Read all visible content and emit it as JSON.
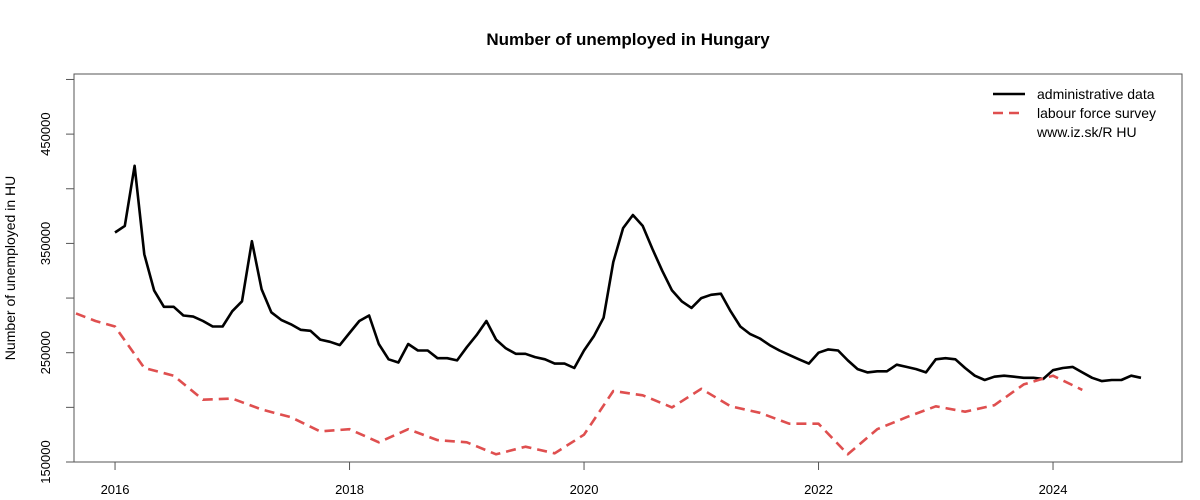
{
  "chart_data": {
    "type": "line",
    "title": "Number of unemployed in Hungary",
    "xlabel": "",
    "ylabel": "Number of unemployed in HU",
    "xlim": [
      2015.65,
      2025.1
    ],
    "ylim": [
      150000,
      505000
    ],
    "x_ticks": [
      2016,
      2018,
      2020,
      2022,
      2024
    ],
    "y_ticks": [
      150000,
      200000,
      250000,
      300000,
      350000,
      400000,
      450000,
      500000
    ],
    "y_tick_labels": [
      {
        "value": 150000,
        "label": "150000"
      },
      {
        "value": 250000,
        "label": "250000"
      },
      {
        "value": 350000,
        "label": "350000"
      },
      {
        "value": 450000,
        "label": "450000"
      }
    ],
    "grid": false,
    "legend_position": "top-right",
    "legend_note": "www.iz.sk/R HU",
    "colors": {
      "administrative": "#000000",
      "lfs": "#df4f4f"
    },
    "series": [
      {
        "name": "administrative data",
        "style": "solid",
        "color": "#000000",
        "x": [
          2016.0,
          2016.083,
          2016.167,
          2016.25,
          2016.333,
          2016.417,
          2016.5,
          2016.583,
          2016.667,
          2016.75,
          2016.833,
          2016.917,
          2017.0,
          2017.083,
          2017.167,
          2017.25,
          2017.333,
          2017.417,
          2017.5,
          2017.583,
          2017.667,
          2017.75,
          2017.833,
          2017.917,
          2018.0,
          2018.083,
          2018.167,
          2018.25,
          2018.333,
          2018.417,
          2018.5,
          2018.583,
          2018.667,
          2018.75,
          2018.833,
          2018.917,
          2019.0,
          2019.083,
          2019.167,
          2019.25,
          2019.333,
          2019.417,
          2019.5,
          2019.583,
          2019.667,
          2019.75,
          2019.833,
          2019.917,
          2020.0,
          2020.083,
          2020.167,
          2020.25,
          2020.333,
          2020.417,
          2020.5,
          2020.583,
          2020.667,
          2020.75,
          2020.833,
          2020.917,
          2021.0,
          2021.083,
          2021.167,
          2021.25,
          2021.333,
          2021.417,
          2021.5,
          2021.583,
          2021.667,
          2021.75,
          2021.833,
          2021.917,
          2022.0,
          2022.083,
          2022.167,
          2022.25,
          2022.333,
          2022.417,
          2022.5,
          2022.583,
          2022.667,
          2022.75,
          2022.833,
          2022.917,
          2023.0,
          2023.083,
          2023.167,
          2023.25,
          2023.333,
          2023.417,
          2023.5,
          2023.583,
          2023.667,
          2023.75,
          2023.833,
          2023.917,
          2024.0,
          2024.083,
          2024.167,
          2024.25,
          2024.333,
          2024.417,
          2024.5,
          2024.583,
          2024.667,
          2024.75
        ],
        "values": [
          360000,
          366000,
          421000,
          340000,
          307000,
          292000,
          292000,
          284000,
          283000,
          279000,
          274000,
          274000,
          288000,
          297000,
          352000,
          308000,
          287000,
          280000,
          276000,
          271000,
          270000,
          262000,
          260000,
          257000,
          268000,
          279000,
          284000,
          258000,
          244000,
          241000,
          258000,
          252000,
          252000,
          245000,
          245000,
          243000,
          255000,
          266000,
          279000,
          262000,
          254000,
          249000,
          249000,
          246000,
          244000,
          240000,
          240000,
          236000,
          252000,
          265000,
          282000,
          333000,
          364000,
          376000,
          366000,
          345000,
          325000,
          307000,
          297000,
          291000,
          300000,
          303000,
          304000,
          288000,
          274000,
          267000,
          263000,
          257000,
          252000,
          248000,
          244000,
          240000,
          250000,
          253000,
          252000,
          243000,
          235000,
          232000,
          233000,
          233000,
          239000,
          237000,
          235000,
          232000,
          244000,
          245000,
          244000,
          236000,
          229000,
          225000,
          228000,
          229000,
          228000,
          227000,
          227000,
          226000,
          234000,
          236000,
          237000,
          232000,
          227000,
          224000,
          225000,
          225000,
          229000,
          227000
        ]
      },
      {
        "name": "labour force survey",
        "style": "dashed",
        "color": "#df4f4f",
        "x": [
          2015.667,
          2015.833,
          2016.0,
          2016.25,
          2016.5,
          2016.75,
          2017.0,
          2017.25,
          2017.5,
          2017.75,
          2018.0,
          2018.25,
          2018.5,
          2018.75,
          2019.0,
          2019.25,
          2019.5,
          2019.75,
          2020.0,
          2020.25,
          2020.5,
          2020.75,
          2021.0,
          2021.25,
          2021.5,
          2021.75,
          2022.0,
          2022.25,
          2022.5,
          2022.75,
          2023.0,
          2023.25,
          2023.5,
          2023.75,
          2024.0,
          2024.25
        ],
        "values": [
          286000,
          279000,
          274000,
          236000,
          229000,
          207000,
          208000,
          198000,
          191000,
          178000,
          180000,
          168000,
          180000,
          170000,
          168000,
          157000,
          164000,
          158000,
          175000,
          215000,
          211000,
          200000,
          217000,
          201000,
          195000,
          185000,
          185000,
          157000,
          180000,
          191000,
          201000,
          196000,
          202000,
          221000,
          229000,
          216000
        ]
      }
    ]
  }
}
